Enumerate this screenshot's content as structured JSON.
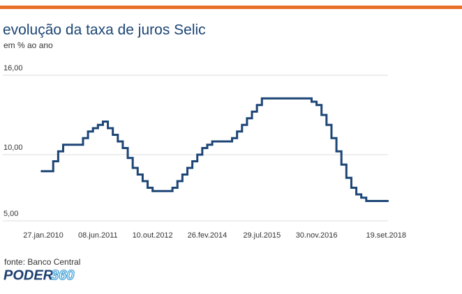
{
  "chart_data": {
    "type": "step-line",
    "title": "evolução da taxa de juros Selic",
    "subtitle": "em % ao ano",
    "source": "fonte: Banco Central",
    "brand": [
      "PODER",
      "360"
    ],
    "categories": [
      "27.jan.2010",
      null,
      null,
      null,
      null,
      null,
      null,
      null,
      null,
      null,
      null,
      "08.jun.2011",
      null,
      null,
      null,
      null,
      null,
      null,
      null,
      null,
      null,
      null,
      "10.out.2012",
      null,
      null,
      null,
      null,
      null,
      null,
      null,
      null,
      null,
      null,
      "26.fev.2014",
      null,
      null,
      null,
      null,
      null,
      null,
      null,
      null,
      null,
      null,
      "29.jul.2015",
      null,
      null,
      null,
      null,
      null,
      null,
      null,
      null,
      null,
      null,
      "30.nov.2016",
      null,
      null,
      null,
      null,
      null,
      null,
      null,
      null,
      null,
      null,
      null,
      null,
      null,
      "19.set.2018"
    ],
    "series": [
      {
        "name": "Selic",
        "color": "#1c4576",
        "values": [
          8.75,
          8.75,
          9.5,
          10.25,
          10.75,
          10.75,
          10.75,
          10.75,
          11.25,
          11.75,
          12.0,
          12.25,
          12.5,
          12.0,
          11.5,
          11.0,
          10.5,
          9.75,
          9.0,
          8.5,
          8.0,
          7.5,
          7.25,
          7.25,
          7.25,
          7.25,
          7.5,
          8.0,
          8.5,
          9.0,
          9.5,
          10.0,
          10.5,
          10.75,
          11.0,
          11.0,
          11.0,
          11.0,
          11.25,
          11.75,
          12.25,
          12.75,
          13.25,
          13.75,
          14.25,
          14.25,
          14.25,
          14.25,
          14.25,
          14.25,
          14.25,
          14.25,
          14.25,
          14.25,
          14.0,
          13.75,
          13.0,
          12.25,
          11.25,
          10.25,
          9.25,
          8.25,
          7.5,
          7.0,
          6.75,
          6.5,
          6.5,
          6.5,
          6.5,
          6.5
        ]
      }
    ],
    "ylim": [
      5,
      16
    ],
    "yticks": [
      {
        "value": 5,
        "label": "5,00"
      },
      {
        "value": 10,
        "label": "10,00"
      },
      {
        "value": 16,
        "label": "16,00"
      }
    ],
    "grid": true
  }
}
